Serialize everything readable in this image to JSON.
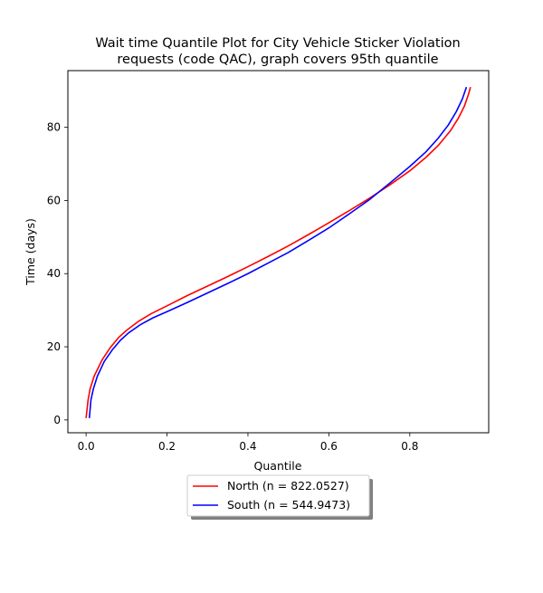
{
  "chart_data": {
    "type": "line",
    "title_lines": [
      "Wait time Quantile Plot for City Vehicle Sticker Violation",
      "requests (code QAC), graph covers 95th quantile"
    ],
    "xlabel": "Quantile",
    "ylabel": "Time (days)",
    "xlim": [
      -0.045,
      0.995
    ],
    "ylim": [
      -3.5,
      95.5
    ],
    "xticks": [
      0.0,
      0.2,
      0.4,
      0.6,
      0.8
    ],
    "xtick_labels": [
      "0.0",
      "0.2",
      "0.4",
      "0.6",
      "0.8"
    ],
    "yticks": [
      0,
      20,
      40,
      60,
      80
    ],
    "ytick_labels": [
      "0",
      "20",
      "40",
      "60",
      "80"
    ],
    "grid": false,
    "legend_position": "below plot, centered",
    "series": [
      {
        "name": "North (n = 822.0527)",
        "color": "#ff0000",
        "x": [
          0.0,
          0.005,
          0.01,
          0.02,
          0.04,
          0.06,
          0.08,
          0.1,
          0.13,
          0.16,
          0.2,
          0.25,
          0.3,
          0.35,
          0.4,
          0.45,
          0.5,
          0.55,
          0.6,
          0.65,
          0.7,
          0.75,
          0.8,
          0.84,
          0.87,
          0.9,
          0.92,
          0.935,
          0.945,
          0.95
        ],
        "y": [
          0.5,
          5.5,
          8.5,
          12.0,
          16.5,
          19.8,
          22.5,
          24.5,
          27.0,
          29.0,
          31.2,
          34.0,
          36.6,
          39.2,
          41.9,
          44.7,
          47.6,
          50.7,
          53.9,
          57.2,
          60.6,
          64.2,
          68.1,
          71.8,
          75.0,
          79.0,
          82.5,
          85.8,
          89.0,
          91.0
        ]
      },
      {
        "name": "South (n = 544.9473)",
        "color": "#0000ff",
        "x": [
          0.008,
          0.012,
          0.018,
          0.028,
          0.045,
          0.065,
          0.085,
          0.105,
          0.135,
          0.165,
          0.2,
          0.25,
          0.3,
          0.35,
          0.4,
          0.45,
          0.5,
          0.55,
          0.6,
          0.65,
          0.7,
          0.75,
          0.8,
          0.84,
          0.87,
          0.895,
          0.915,
          0.93,
          0.94
        ],
        "y": [
          0.5,
          5.5,
          8.5,
          12.0,
          16.0,
          19.2,
          21.8,
          23.8,
          26.1,
          27.9,
          29.6,
          32.1,
          34.7,
          37.3,
          40.0,
          42.9,
          45.8,
          49.1,
          52.5,
          56.3,
          60.2,
          64.7,
          69.3,
          73.3,
          77.0,
          80.6,
          84.3,
          87.8,
          91.0
        ]
      }
    ]
  }
}
